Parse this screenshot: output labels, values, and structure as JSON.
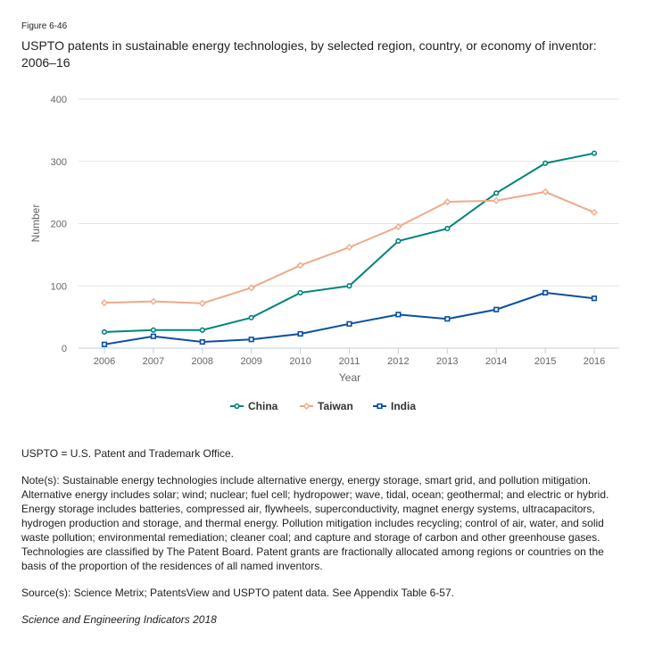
{
  "figure_label": "Figure 6-46",
  "title": "USPTO patents in sustainable energy technologies, by selected region, country, or economy of inventor: 2006–16",
  "chart_data": {
    "type": "line",
    "xlabel": "Year",
    "ylabel": "Number",
    "ylim": [
      0,
      400
    ],
    "yticks": [
      0,
      100,
      200,
      300,
      400
    ],
    "x": [
      2006,
      2007,
      2008,
      2009,
      2010,
      2011,
      2012,
      2013,
      2014,
      2015,
      2016
    ],
    "grid": true,
    "legend_position": "bottom",
    "series": [
      {
        "name": "China",
        "color": "#00857a",
        "marker": "circle",
        "values": [
          26,
          29,
          29,
          49,
          89,
          100,
          172,
          192,
          249,
          297,
          313
        ]
      },
      {
        "name": "Taiwan",
        "color": "#eeaa88",
        "marker": "diamond",
        "values": [
          73,
          75,
          72,
          97,
          133,
          162,
          195,
          235,
          237,
          251,
          218
        ]
      },
      {
        "name": "India",
        "color": "#0c4fa0",
        "marker": "square",
        "values": [
          6,
          19,
          10,
          14,
          23,
          39,
          54,
          47,
          62,
          89,
          80
        ]
      }
    ]
  },
  "notes": {
    "abbrev": "USPTO = U.S. Patent and Trademark Office.",
    "note": "Note(s): Sustainable energy technologies include alternative energy, energy storage, smart grid, and pollution mitigation. Alternative energy includes solar; wind; nuclear; fuel cell; hydropower; wave, tidal, ocean; geothermal; and electric or hybrid. Energy storage includes batteries, compressed air, flywheels, superconductivity, magnet energy systems, ultracapacitors, hydrogen production and storage, and thermal energy. Pollution mitigation includes recycling; control of air, water, and solid waste pollution; environmental remediation; cleaner coal; and capture and storage of carbon and other greenhouse gases. Technologies are classified by The Patent Board. Patent grants are fractionally allocated among regions or countries on the basis of the proportion of the residences of all named inventors.",
    "source": "Source(s): Science Metrix; PatentsView and USPTO patent data. See Appendix Table 6-57.",
    "citation": "Science and Engineering Indicators 2018"
  }
}
